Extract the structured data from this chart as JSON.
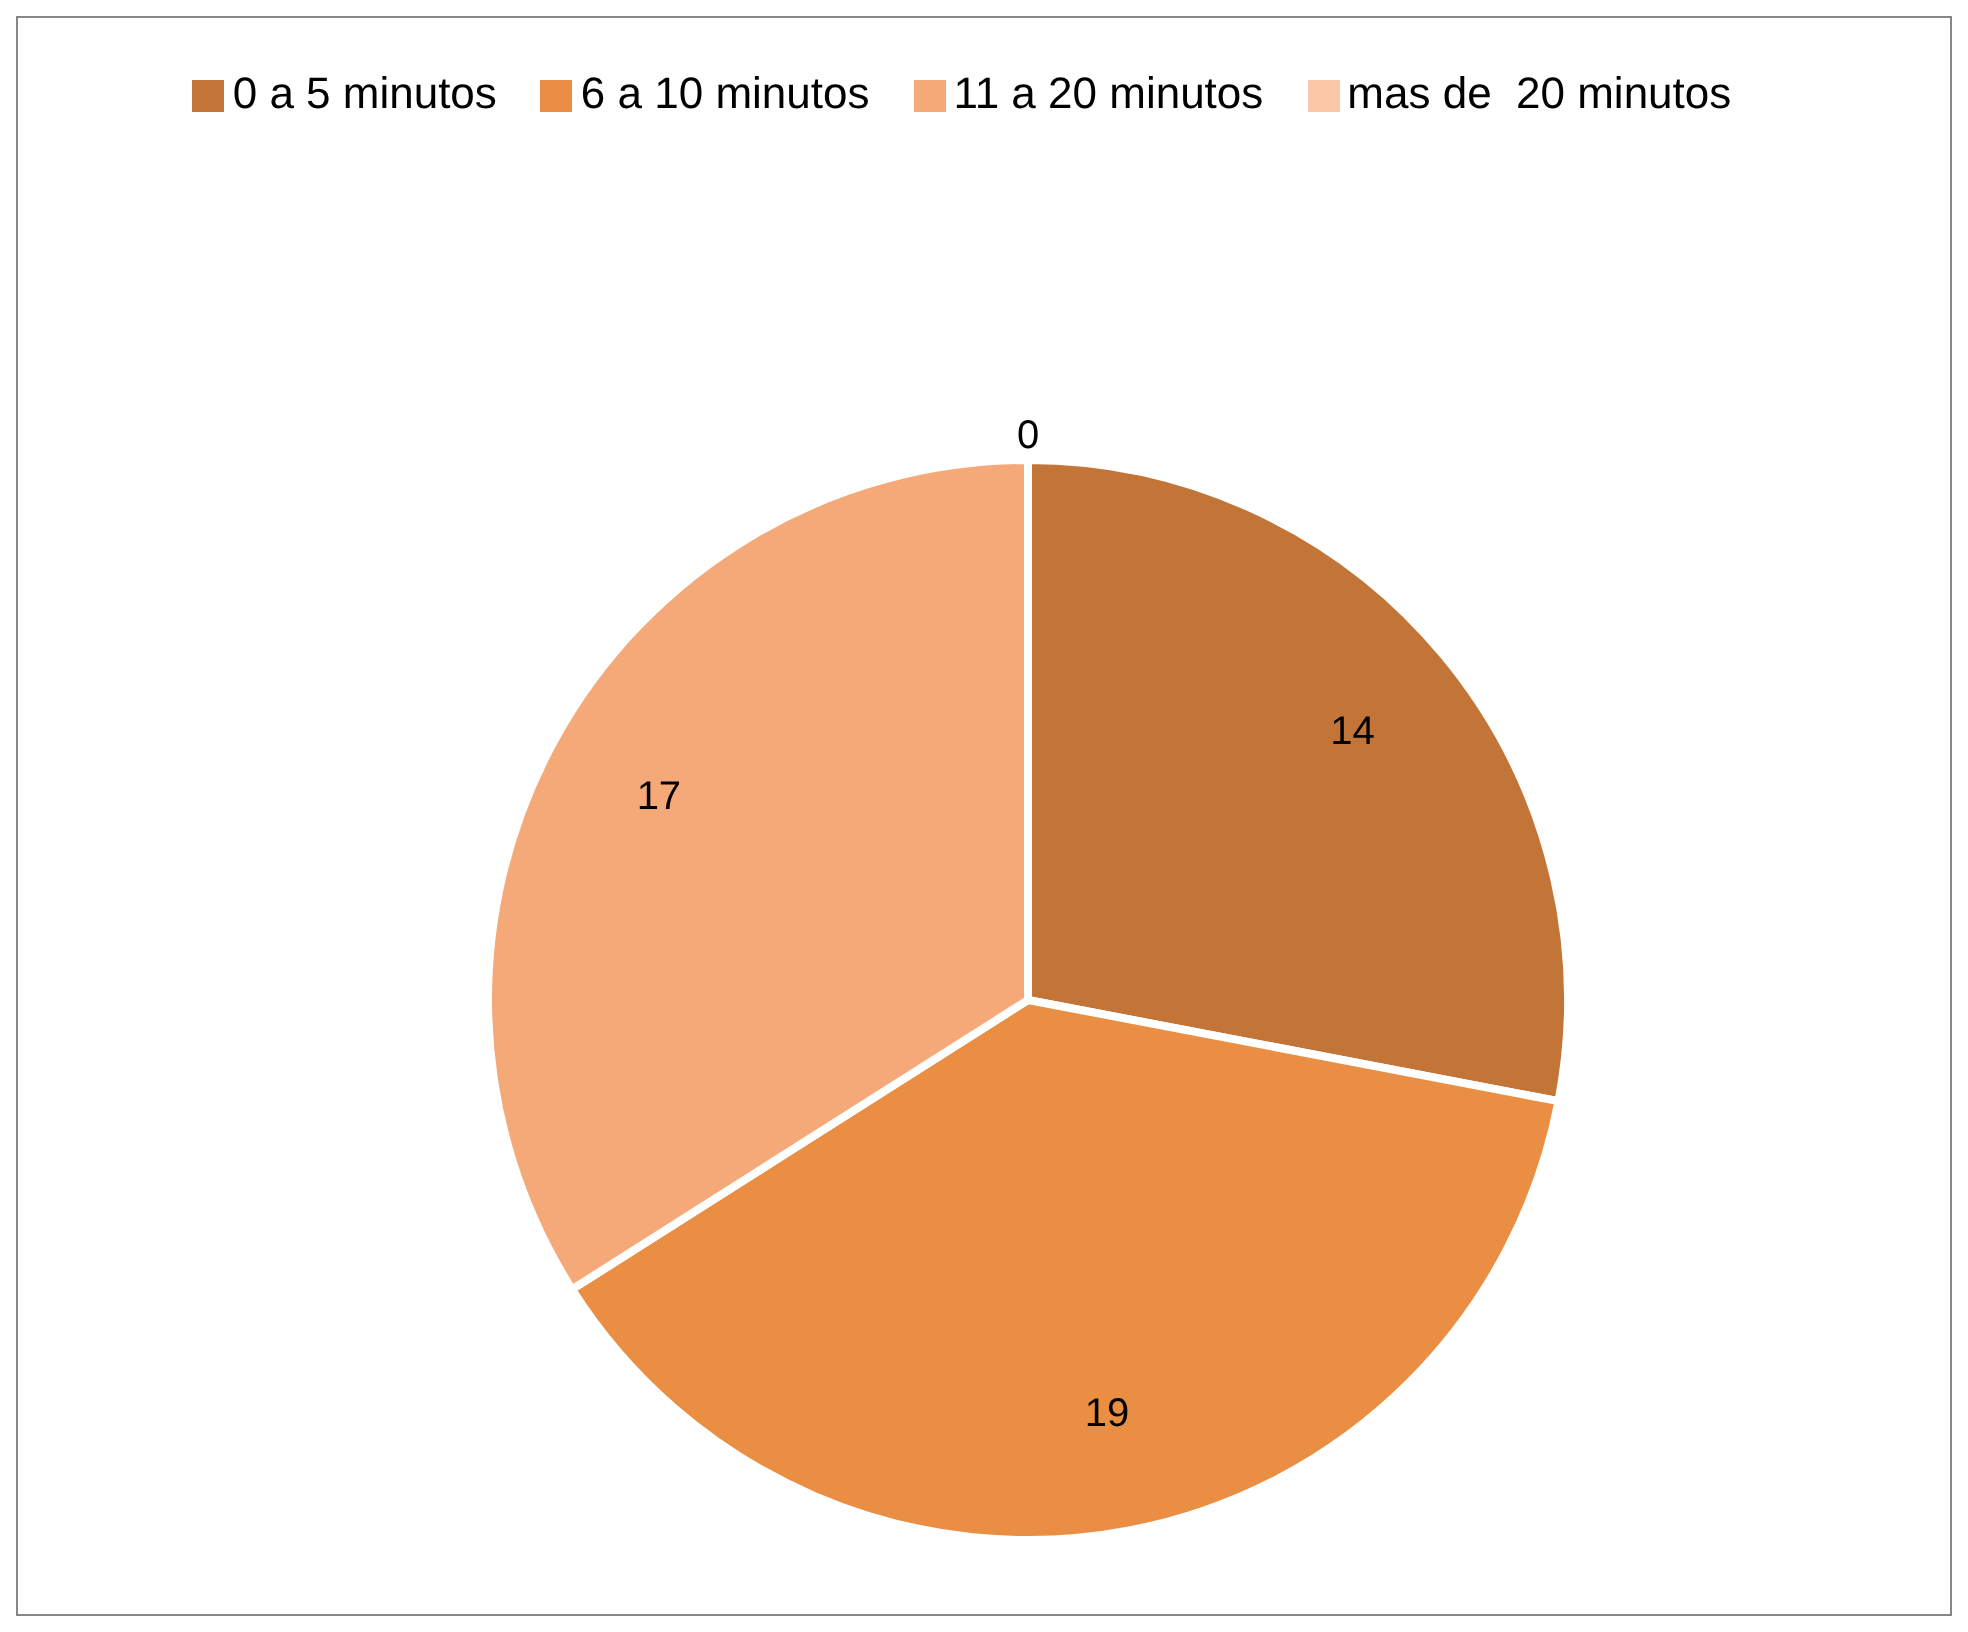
{
  "chart_data": {
    "type": "pie",
    "categories": [
      "0 a 5 minutos",
      "6 a 10 minutos",
      "11 a 20 minutos",
      "mas de  20 minutos"
    ],
    "values": [
      14,
      19,
      17,
      0
    ],
    "colors": [
      "#c27537",
      "#e98e43",
      "#f6a978",
      "#f9c6a6"
    ],
    "value_labels": [
      "14",
      "19",
      "17",
      "0"
    ],
    "legend": "top"
  }
}
